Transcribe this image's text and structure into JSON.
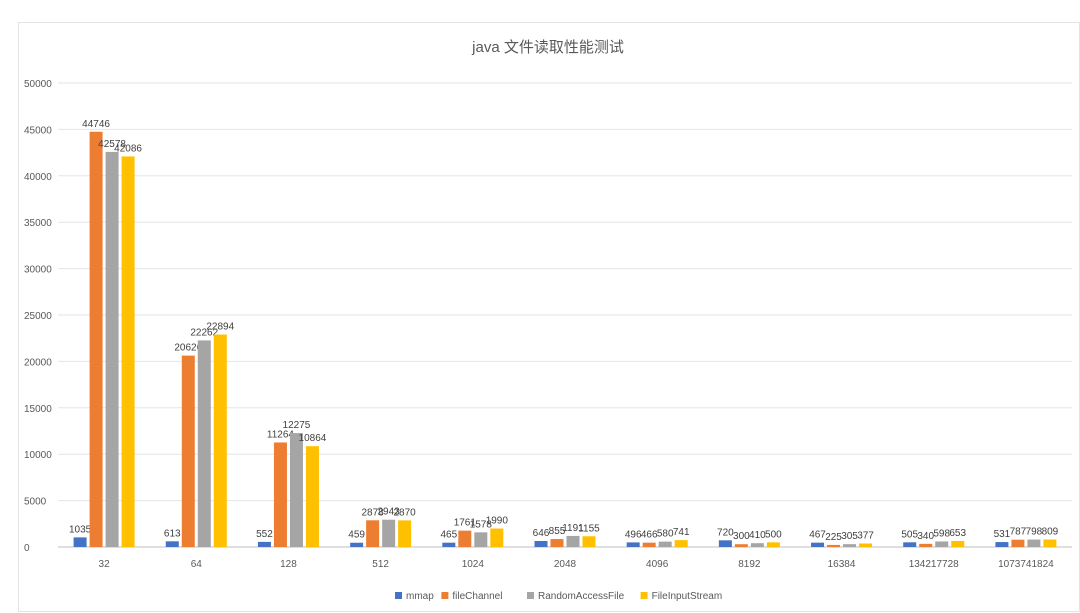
{
  "chart_data": {
    "type": "bar",
    "title": "java 文件读取性能测试",
    "categories": [
      "32",
      "64",
      "128",
      "512",
      "1024",
      "2048",
      "4096",
      "8192",
      "16384",
      "134217728",
      "1073741824"
    ],
    "series": [
      {
        "name": "mmap",
        "color": "#4472c4",
        "values": [
          1035,
          613,
          552,
          459,
          465,
          646,
          496,
          720,
          467,
          505,
          531
        ]
      },
      {
        "name": "fileChannel",
        "color": "#ed7d31",
        "values": [
          44746,
          20626,
          11264,
          2878,
          1761,
          855,
          466,
          300,
          225,
          340,
          787
        ]
      },
      {
        "name": "RandomAccessFile",
        "color": "#a5a5a5",
        "values": [
          42578,
          22262,
          12275,
          2943,
          1578,
          1191,
          580,
          410,
          305,
          598,
          798
        ]
      },
      {
        "name": "FileInputStream",
        "color": "#ffc000",
        "values": [
          42086,
          22894,
          10864,
          2870,
          1990,
          1155,
          741,
          500,
          377,
          653,
          809
        ]
      }
    ],
    "ylim": [
      0,
      50000
    ],
    "yticks": [
      0,
      5000,
      10000,
      15000,
      20000,
      25000,
      30000,
      35000,
      40000,
      45000,
      50000
    ],
    "grid": true,
    "legend": "bottom",
    "data_labels": true
  }
}
